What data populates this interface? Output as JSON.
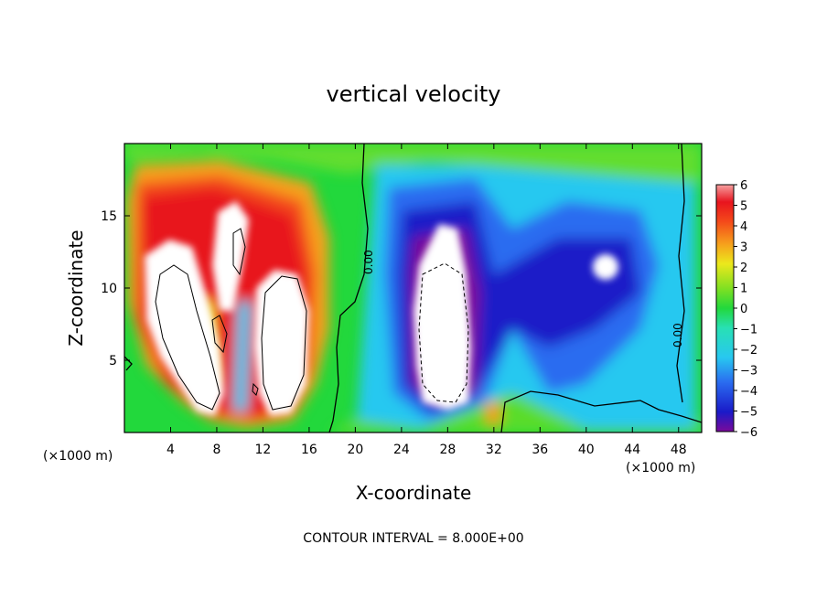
{
  "chart_data": {
    "type": "heatmap",
    "title": "vertical velocity",
    "xlabel": "X-coordinate",
    "ylabel": "Z-coordinate",
    "x_unit": "(×1000 m)",
    "y_unit": "(×1000 m)",
    "xlim": [
      0,
      50
    ],
    "ylim": [
      0,
      20
    ],
    "x_ticks": [
      4,
      8,
      12,
      16,
      20,
      24,
      28,
      32,
      36,
      40,
      44,
      48
    ],
    "y_ticks": [
      5,
      10,
      15
    ],
    "colorbar": {
      "ticks": [
        6,
        5,
        4,
        3,
        2,
        1,
        0,
        -1,
        -2,
        -3,
        -4,
        -5,
        -6
      ],
      "tick_labels": [
        "6",
        "5",
        "4",
        "3",
        "2",
        "1",
        "0",
        "−1",
        "−2",
        "−3",
        "−4",
        "−5",
        "−6"
      ],
      "range": [
        -6,
        6
      ],
      "palette": [
        "#7a0a9a",
        "#1a1ac8",
        "#2a6cf0",
        "#28c8f0",
        "#28e0b4",
        "#22d83c",
        "#80e022",
        "#ece81c",
        "#f6a01c",
        "#f44a1a",
        "#e8141e",
        "#f6a0a0",
        "#ffffff"
      ]
    },
    "contour_label": "0.00",
    "contour_interval_text": "CONTOUR INTERVAL = 8.000E+00",
    "features": [
      {
        "sign": "positive",
        "x": 5.5,
        "z": 9.0,
        "value": 8
      },
      {
        "sign": "positive",
        "x": 9.5,
        "z": 12.5,
        "value": 8
      },
      {
        "sign": "positive",
        "x": 14.2,
        "z": 7.5,
        "value": 8
      },
      {
        "sign": "negative",
        "x": 27.5,
        "z": 8.0,
        "value": -8
      },
      {
        "sign": "negative",
        "x": 41.0,
        "z": 11.5,
        "value": -8
      }
    ]
  }
}
